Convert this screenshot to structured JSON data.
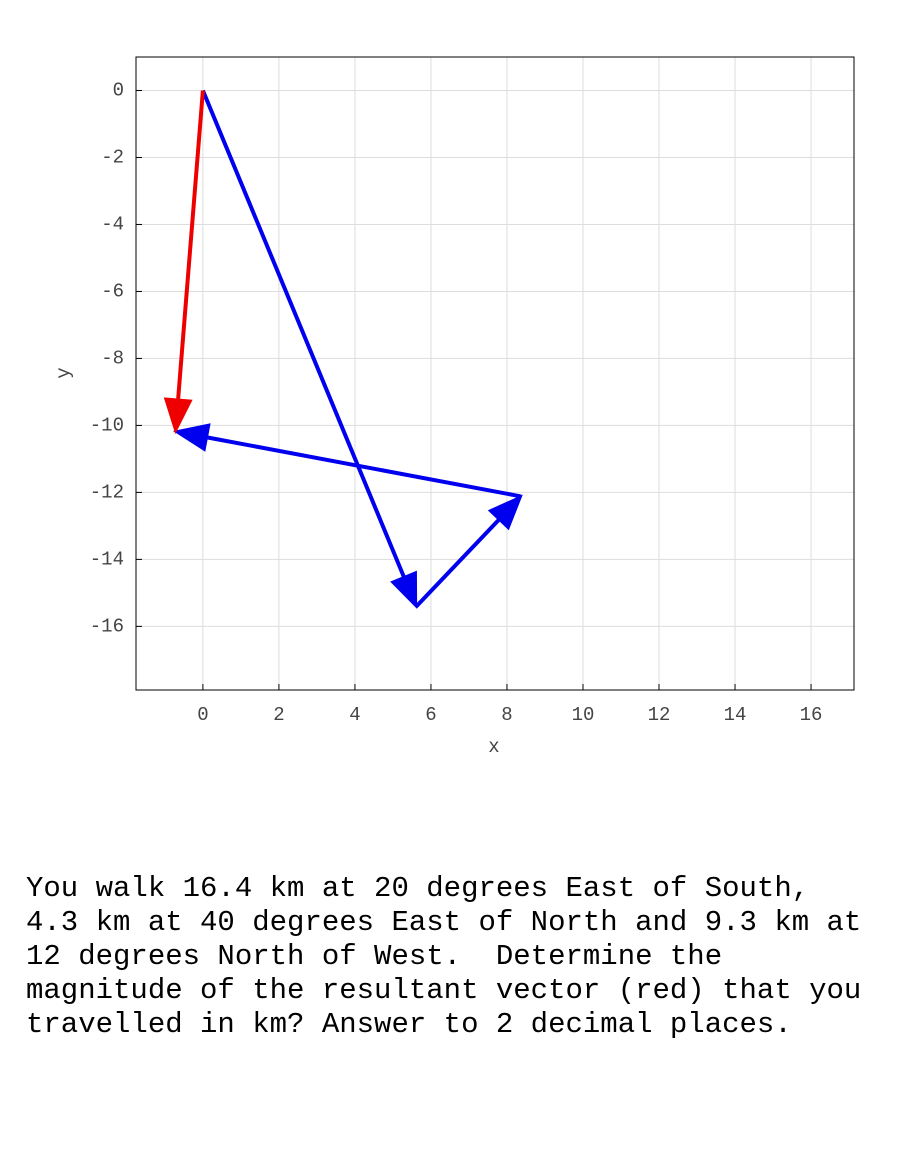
{
  "chart_data": {
    "type": "vector",
    "xlabel": "x",
    "ylabel": "y",
    "xlim": [
      -1.76,
      17.13
    ],
    "ylim": [
      -17.9,
      1.0
    ],
    "xticks": [
      0,
      2,
      4,
      6,
      8,
      10,
      12,
      14,
      16
    ],
    "yticks": [
      0,
      -2,
      -4,
      -6,
      -8,
      -10,
      -12,
      -14,
      -16
    ],
    "grid": true,
    "vectors": [
      {
        "x0": 0,
        "y0": 0,
        "x1": 5.61,
        "y1": -15.41,
        "color": "#0000ee"
      },
      {
        "x0": 5.61,
        "y0": -15.41,
        "x1": 8.37,
        "y1": -12.12,
        "color": "#0000ee"
      },
      {
        "x0": 8.37,
        "y0": -12.12,
        "x1": -0.72,
        "y1": -10.18,
        "color": "#0000ee"
      },
      {
        "x0": 0,
        "y0": 0,
        "x1": -0.72,
        "y1": -10.18,
        "color": "#ee0000"
      }
    ]
  },
  "question": {
    "lines": [
      "You walk 16.4 km at 20 degrees East of South,",
      "4.3 km at 40 degrees East of North and 9.3 km at",
      "12 degrees North of West.  Determine the",
      "magnitude of the resultant vector (red) that you",
      "travelled in km? Answer to 2 decimal places."
    ]
  }
}
